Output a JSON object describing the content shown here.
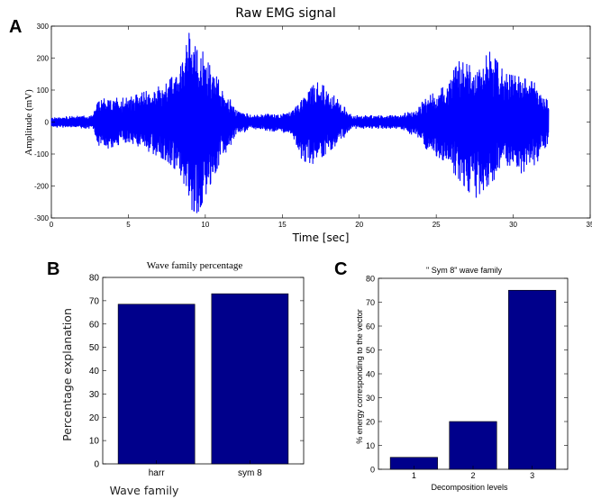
{
  "chart_data": [
    {
      "panel": "A",
      "type": "line",
      "title": "Raw EMG signal",
      "xlabel": "Time [sec]",
      "ylabel": "Amplitude (mV)",
      "xlim": [
        0,
        35
      ],
      "ylim": [
        -300,
        300
      ],
      "xticks": [
        "0",
        "5",
        "10",
        "15",
        "20",
        "25",
        "30",
        "35"
      ],
      "yticks": [
        "-300",
        "-200",
        "-100",
        "0",
        "100",
        "200",
        "300"
      ],
      "color": "#0000ff",
      "duration_sec": 32.3,
      "envelope": {
        "t": [
          0,
          2.7,
          3.0,
          3.5,
          5,
          7.5,
          8.5,
          9.0,
          9.5,
          10.0,
          11,
          12,
          13,
          15.5,
          16.3,
          17.0,
          17.8,
          18.8,
          19.5,
          22.5,
          23.5,
          24.5,
          25.5,
          26.5,
          27.5,
          28.5,
          29.5,
          30.5,
          31.5,
          32.3
        ],
        "upper": [
          15,
          20,
          60,
          75,
          75,
          120,
          180,
          290,
          260,
          200,
          120,
          40,
          20,
          30,
          80,
          130,
          110,
          60,
          20,
          20,
          35,
          80,
          110,
          190,
          170,
          220,
          150,
          140,
          120,
          60
        ],
        "lower": [
          -15,
          -20,
          -70,
          -85,
          -60,
          -120,
          -170,
          -270,
          -285,
          -230,
          -120,
          -45,
          -20,
          -35,
          -120,
          -130,
          -100,
          -60,
          -20,
          -20,
          -40,
          -90,
          -120,
          -180,
          -240,
          -190,
          -150,
          -160,
          -130,
          -60
        ]
      }
    },
    {
      "panel": "B",
      "type": "bar",
      "title": "Wave family percentage",
      "xlabel": "Wave family",
      "ylabel": "Percentage explanation",
      "categories": [
        "harr",
        "sym 8"
      ],
      "values": [
        68.5,
        73
      ],
      "ylim": [
        0,
        80
      ],
      "yticks": [
        "0",
        "10",
        "20",
        "30",
        "40",
        "50",
        "60",
        "70",
        "80"
      ],
      "color": "#00008b"
    },
    {
      "panel": "C",
      "type": "bar",
      "title": "\" Sym 8\" wave family",
      "xlabel": "Decomposition levels",
      "ylabel": "% energy corresponding to the vector",
      "categories": [
        "1",
        "2",
        "3"
      ],
      "values": [
        5,
        20,
        75
      ],
      "ylim": [
        0,
        80
      ],
      "yticks": [
        "0",
        "10",
        "20",
        "30",
        "40",
        "50",
        "60",
        "70",
        "80"
      ],
      "color": "#00008b"
    }
  ]
}
